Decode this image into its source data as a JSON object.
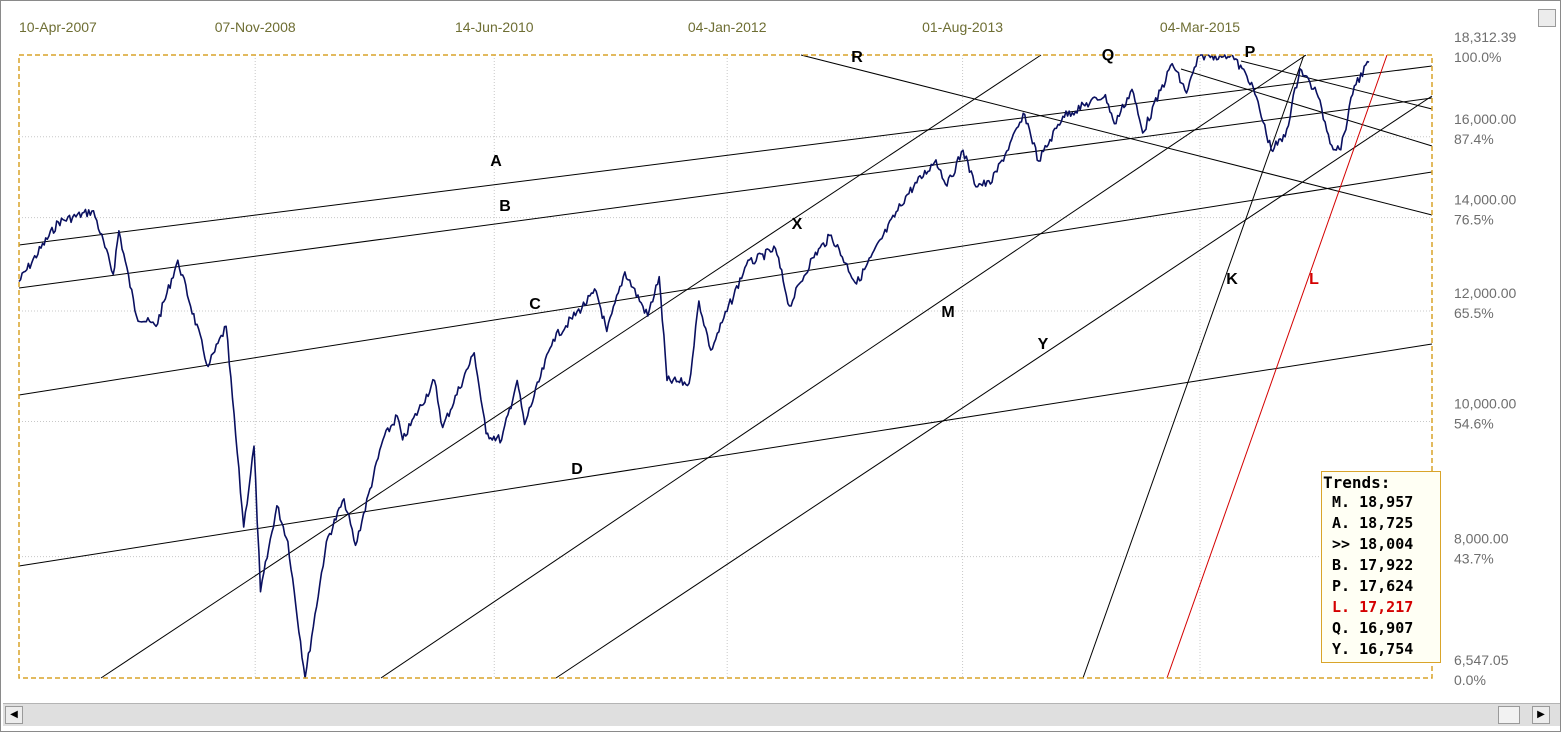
{
  "chart_data": {
    "type": "line",
    "title": "",
    "x_axis": {
      "type": "date",
      "range": [
        "2007-04-10",
        "2016-03-31"
      ],
      "tick_labels": [
        "10-Apr-2007",
        "07-Nov-2008",
        "14-Jun-2010",
        "04-Jan-2012",
        "01-Aug-2013",
        "04-Mar-2015"
      ]
    },
    "y_axis": {
      "scale": "log",
      "range": [
        6547.05,
        18312.39
      ],
      "tick_values": [
        18312.39,
        16000,
        14000,
        12000,
        10000,
        8000,
        6547.05
      ],
      "tick_labels": [
        "18,312.39",
        "16,000.00",
        "14,000.00",
        "12,000.00",
        "10,000.00",
        "8,000.00",
        "6,547.05"
      ],
      "percent_labels": [
        "100.0%",
        "87.4%",
        "76.5%",
        "65.5%",
        "54.6%",
        "43.7%",
        "0.0%"
      ]
    },
    "grid": true,
    "series": [
      {
        "color": "#0a1060",
        "points": [
          [
            "2007-04-10",
            12600
          ],
          [
            "2007-07-15",
            13900
          ],
          [
            "2007-10-09",
            14160
          ],
          [
            "2007-11-26",
            12750
          ],
          [
            "2007-12-10",
            13700
          ],
          [
            "2008-01-22",
            11900
          ],
          [
            "2008-03-10",
            11700
          ],
          [
            "2008-05-02",
            13050
          ],
          [
            "2008-07-15",
            10950
          ],
          [
            "2008-08-28",
            11700
          ],
          [
            "2008-10-10",
            8400
          ],
          [
            "2008-11-04",
            9600
          ],
          [
            "2008-11-20",
            7550
          ],
          [
            "2008-12-30",
            8700
          ],
          [
            "2009-01-26",
            8200
          ],
          [
            "2009-03-09",
            6547
          ],
          [
            "2009-04-30",
            8200
          ],
          [
            "2009-06-12",
            8800
          ],
          [
            "2009-07-10",
            8150
          ],
          [
            "2009-09-15",
            9700
          ],
          [
            "2009-10-20",
            10090
          ],
          [
            "2009-11-02",
            9700
          ],
          [
            "2010-01-19",
            10700
          ],
          [
            "2010-02-08",
            9900
          ],
          [
            "2010-04-26",
            11200
          ],
          [
            "2010-05-25",
            9800
          ],
          [
            "2010-07-02",
            9700
          ],
          [
            "2010-08-09",
            10700
          ],
          [
            "2010-08-27",
            9950
          ],
          [
            "2010-11-05",
            11450
          ],
          [
            "2011-02-18",
            12400
          ],
          [
            "2011-03-16",
            11600
          ],
          [
            "2011-04-29",
            12800
          ],
          [
            "2011-06-24",
            11900
          ],
          [
            "2011-07-22",
            12700
          ],
          [
            "2011-08-10",
            10700
          ],
          [
            "2011-10-03",
            10650
          ],
          [
            "2011-10-27",
            12200
          ],
          [
            "2011-11-25",
            11250
          ],
          [
            "2012-02-20",
            12950
          ],
          [
            "2012-05-01",
            13300
          ],
          [
            "2012-06-04",
            12100
          ],
          [
            "2012-07-30",
            13100
          ],
          [
            "2012-09-14",
            13600
          ],
          [
            "2012-11-15",
            12550
          ],
          [
            "2013-03-15",
            14500
          ],
          [
            "2013-05-28",
            15400
          ],
          [
            "2013-06-24",
            14750
          ],
          [
            "2013-08-02",
            15650
          ],
          [
            "2013-08-30",
            14800
          ],
          [
            "2013-10-08",
            14800
          ],
          [
            "2013-12-31",
            16600
          ],
          [
            "2014-02-03",
            15370
          ],
          [
            "2014-04-03",
            16550
          ],
          [
            "2014-07-16",
            17150
          ],
          [
            "2014-08-07",
            16350
          ],
          [
            "2014-09-19",
            17300
          ],
          [
            "2014-10-15",
            16100
          ],
          [
            "2014-12-26",
            18050
          ],
          [
            "2015-01-30",
            17200
          ],
          [
            "2015-03-02",
            18290
          ],
          [
            "2015-05-19",
            18310
          ],
          [
            "2015-07-08",
            17500
          ],
          [
            "2015-08-25",
            15660
          ],
          [
            "2015-09-28",
            16000
          ],
          [
            "2015-11-03",
            17900
          ],
          [
            "2015-12-14",
            17200
          ],
          [
            "2016-01-20",
            15770
          ],
          [
            "2016-02-11",
            15660
          ],
          [
            "2016-03-15",
            17400
          ],
          [
            "2016-04-20",
            18100
          ]
        ]
      }
    ],
    "trend_lines": [
      {
        "label": "A",
        "color": "#000000"
      },
      {
        "label": "B",
        "color": "#000000"
      },
      {
        "label": "C",
        "color": "#000000"
      },
      {
        "label": "D",
        "color": "#000000"
      },
      {
        "label": "X",
        "color": "#000000"
      },
      {
        "label": "M",
        "color": "#000000"
      },
      {
        "label": "Y",
        "color": "#000000"
      },
      {
        "label": "R",
        "color": "#000000"
      },
      {
        "label": "Q",
        "color": "#000000"
      },
      {
        "label": "P",
        "color": "#000000"
      },
      {
        "label": "K",
        "color": "#000000"
      },
      {
        "label": "L",
        "color": "#d40000"
      }
    ],
    "legend": {
      "title": "Trends:",
      "entries": [
        {
          "text": "M. 18,957",
          "color": "#000000"
        },
        {
          "text": "A. 18,725",
          "color": "#000000"
        },
        {
          "text": ">> 18,004",
          "color": "#000000"
        },
        {
          "text": "B. 17,922",
          "color": "#000000"
        },
        {
          "text": "P. 17,624",
          "color": "#000000"
        },
        {
          "text": "L. 17,217",
          "color": "#d40000"
        },
        {
          "text": "Q. 16,907",
          "color": "#000000"
        },
        {
          "text": "Y. 16,754",
          "color": "#000000"
        }
      ]
    }
  },
  "colors": {
    "price_line": "#0a1060",
    "frame_border": "#d9a42a",
    "trend_line": "#000000",
    "highlight_trend": "#d40000"
  },
  "scrollbar": {
    "left_icon": "arrow-left-icon",
    "right_icon": "arrow-right-icon"
  }
}
